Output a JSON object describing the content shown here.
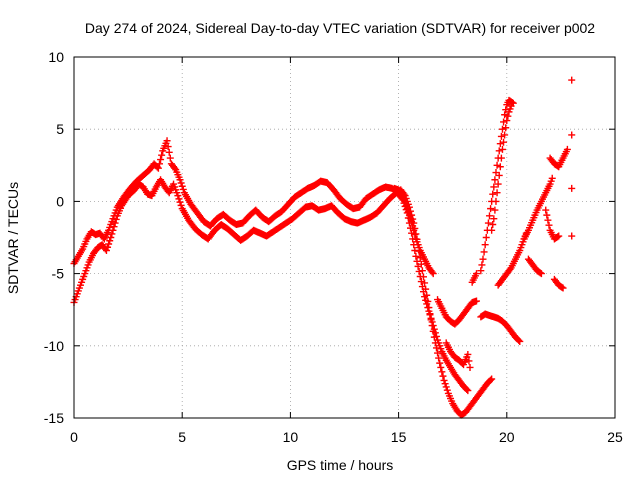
{
  "chart_data": {
    "type": "scatter",
    "title": "Day 274 of 2024, Sidereal Day-to-day VTEC variation (SDTVAR) for receiver p002",
    "xlabel": "GPS time / hours",
    "ylabel": "SDTVAR / TECUs",
    "xlim": [
      0,
      25
    ],
    "ylim": [
      -15,
      10
    ],
    "xticks": [
      0,
      5,
      10,
      15,
      20,
      25
    ],
    "yticks": [
      -15,
      -10,
      -5,
      0,
      5,
      10
    ],
    "grid": true,
    "marker": "plus",
    "color": "#ff0000",
    "series": [
      {
        "segments": [
          [
            [
              0.0,
              -7.0
            ],
            [
              0.25,
              -6.0
            ],
            [
              0.5,
              -5.0
            ],
            [
              0.7,
              -4.2
            ],
            [
              0.9,
              -3.6
            ],
            [
              1.1,
              -3.2
            ],
            [
              1.3,
              -3.0
            ],
            [
              1.5,
              -3.4
            ],
            [
              1.7,
              -2.5
            ],
            [
              1.9,
              -1.5
            ],
            [
              2.0,
              -1.0
            ],
            [
              2.2,
              -0.3
            ],
            [
              2.5,
              0.4
            ],
            [
              2.8,
              0.8
            ],
            [
              3.0,
              1.2
            ],
            [
              3.2,
              1.0
            ],
            [
              3.4,
              0.5
            ],
            [
              3.6,
              0.4
            ],
            [
              3.8,
              1.0
            ],
            [
              4.0,
              1.5
            ],
            [
              4.2,
              1.0
            ],
            [
              4.4,
              0.6
            ],
            [
              4.6,
              1.2
            ],
            [
              4.8,
              0.4
            ],
            [
              5.0,
              -0.5
            ],
            [
              5.3,
              -1.3
            ],
            [
              5.6,
              -1.9
            ],
            [
              5.9,
              -2.3
            ],
            [
              6.2,
              -2.6
            ],
            [
              6.5,
              -2.0
            ],
            [
              6.8,
              -1.6
            ],
            [
              7.1,
              -1.9
            ],
            [
              7.4,
              -2.3
            ],
            [
              7.7,
              -2.7
            ],
            [
              8.0,
              -2.4
            ],
            [
              8.3,
              -2.0
            ],
            [
              8.6,
              -2.2
            ],
            [
              8.9,
              -2.4
            ],
            [
              9.2,
              -2.1
            ],
            [
              9.5,
              -1.8
            ],
            [
              9.8,
              -1.5
            ],
            [
              10.1,
              -1.2
            ],
            [
              10.4,
              -0.8
            ],
            [
              10.7,
              -0.4
            ],
            [
              11.0,
              -0.3
            ],
            [
              11.3,
              -0.6
            ],
            [
              11.6,
              -0.5
            ],
            [
              11.9,
              -0.3
            ],
            [
              12.2,
              -0.8
            ],
            [
              12.5,
              -1.2
            ],
            [
              12.8,
              -1.4
            ],
            [
              13.1,
              -1.5
            ],
            [
              13.4,
              -1.3
            ],
            [
              13.7,
              -1.1
            ],
            [
              14.0,
              -0.8
            ],
            [
              14.3,
              -0.3
            ],
            [
              14.6,
              0.2
            ],
            [
              14.9,
              0.6
            ],
            [
              15.1,
              0.8
            ],
            [
              15.3,
              0.4
            ],
            [
              15.5,
              -0.4
            ],
            [
              15.7,
              -1.5
            ],
            [
              15.9,
              -3.0
            ],
            [
              16.1,
              -4.8
            ],
            [
              16.3,
              -6.5
            ],
            [
              16.5,
              -8.2
            ],
            [
              16.7,
              -9.8
            ],
            [
              16.9,
              -11.2
            ],
            [
              17.1,
              -12.4
            ],
            [
              17.3,
              -13.3
            ],
            [
              17.5,
              -14.0
            ],
            [
              17.7,
              -14.5
            ],
            [
              17.9,
              -14.8
            ],
            [
              18.1,
              -14.6
            ],
            [
              18.3,
              -14.2
            ],
            [
              18.5,
              -13.8
            ],
            [
              18.7,
              -13.4
            ],
            [
              18.9,
              -13.0
            ],
            [
              19.1,
              -12.6
            ],
            [
              19.3,
              -12.3
            ]
          ],
          [
            [
              0.0,
              -4.3
            ],
            [
              0.2,
              -3.8
            ],
            [
              0.4,
              -3.3
            ],
            [
              0.6,
              -2.6
            ],
            [
              0.8,
              -2.1
            ],
            [
              1.0,
              -2.3
            ],
            [
              1.2,
              -2.2
            ],
            [
              1.4,
              -2.6
            ],
            [
              1.6,
              -2.0
            ],
            [
              1.8,
              -1.2
            ],
            [
              2.0,
              -0.4
            ],
            [
              2.3,
              0.3
            ],
            [
              2.6,
              0.9
            ],
            [
              2.9,
              1.4
            ],
            [
              3.2,
              1.8
            ],
            [
              3.5,
              2.2
            ],
            [
              3.7,
              2.6
            ],
            [
              3.9,
              2.3
            ],
            [
              4.1,
              3.5
            ],
            [
              4.3,
              4.2
            ],
            [
              4.5,
              2.6
            ],
            [
              4.7,
              2.2
            ],
            [
              4.9,
              1.5
            ],
            [
              5.1,
              0.6
            ],
            [
              5.4,
              -0.2
            ],
            [
              5.7,
              -0.8
            ],
            [
              6.0,
              -1.4
            ],
            [
              6.3,
              -1.7
            ],
            [
              6.6,
              -1.2
            ],
            [
              6.9,
              -0.9
            ],
            [
              7.2,
              -1.3
            ],
            [
              7.5,
              -1.6
            ],
            [
              7.8,
              -1.5
            ],
            [
              8.1,
              -1.0
            ],
            [
              8.4,
              -0.6
            ],
            [
              8.7,
              -1.1
            ],
            [
              9.0,
              -1.4
            ],
            [
              9.3,
              -1.0
            ],
            [
              9.6,
              -0.7
            ],
            [
              9.9,
              -0.2
            ],
            [
              10.2,
              0.3
            ],
            [
              10.5,
              0.6
            ],
            [
              10.8,
              0.9
            ],
            [
              11.1,
              1.1
            ],
            [
              11.4,
              1.4
            ],
            [
              11.7,
              1.3
            ],
            [
              12.0,
              0.8
            ],
            [
              12.3,
              0.2
            ],
            [
              12.6,
              -0.2
            ],
            [
              12.9,
              -0.5
            ],
            [
              13.2,
              -0.4
            ],
            [
              13.5,
              0.2
            ],
            [
              13.8,
              0.5
            ],
            [
              14.1,
              0.8
            ],
            [
              14.4,
              1.0
            ],
            [
              14.7,
              0.9
            ],
            [
              15.0,
              0.5
            ],
            [
              15.2,
              0.1
            ],
            [
              15.4,
              -0.8
            ],
            [
              15.6,
              -2.2
            ],
            [
              15.8,
              -3.8
            ],
            [
              16.0,
              -5.2
            ],
            [
              16.2,
              -6.6
            ],
            [
              16.4,
              -7.6
            ],
            [
              16.6,
              -8.6
            ],
            [
              16.8,
              -9.6
            ],
            [
              17.0,
              -10.4
            ],
            [
              17.2,
              -11.0
            ],
            [
              17.4,
              -11.5
            ],
            [
              17.6,
              -12.0
            ],
            [
              17.8,
              -12.4
            ],
            [
              18.0,
              -12.8
            ],
            [
              18.2,
              -13.1
            ]
          ],
          [
            [
              14.8,
              0.9
            ],
            [
              15.0,
              0.8
            ],
            [
              15.2,
              0.3
            ],
            [
              15.4,
              -0.5
            ],
            [
              15.6,
              -1.4
            ],
            [
              15.8,
              -2.6
            ],
            [
              16.0,
              -3.4
            ],
            [
              16.2,
              -4.0
            ],
            [
              16.4,
              -4.6
            ],
            [
              16.6,
              -5.0
            ]
          ],
          [
            [
              16.8,
              -6.8
            ],
            [
              17.0,
              -7.4
            ],
            [
              17.2,
              -8.0
            ],
            [
              17.4,
              -8.3
            ],
            [
              17.6,
              -8.5
            ],
            [
              17.8,
              -8.2
            ],
            [
              18.0,
              -7.8
            ],
            [
              18.2,
              -7.4
            ],
            [
              18.4,
              -7.0
            ],
            [
              18.6,
              -6.9
            ]
          ],
          [
            [
              17.2,
              -9.8
            ],
            [
              17.4,
              -10.4
            ],
            [
              17.6,
              -10.8
            ],
            [
              17.8,
              -11.0
            ],
            [
              18.0,
              -11.3
            ],
            [
              18.2,
              -10.6
            ],
            [
              18.3,
              -11.5
            ]
          ],
          [
            [
              18.4,
              -5.6
            ],
            [
              18.6,
              -5.0
            ]
          ],
          [
            [
              18.8,
              -4.8
            ],
            [
              18.9,
              -4.0
            ],
            [
              19.0,
              -3.0
            ],
            [
              19.1,
              -2.0
            ],
            [
              19.2,
              -1.0
            ],
            [
              19.3,
              0.0
            ],
            [
              19.4,
              1.0
            ],
            [
              19.5,
              2.0
            ],
            [
              19.6,
              3.0
            ],
            [
              19.7,
              4.0
            ],
            [
              19.8,
              5.0
            ],
            [
              19.9,
              6.0
            ],
            [
              20.0,
              6.7
            ],
            [
              20.1,
              7.0
            ],
            [
              20.2,
              6.9
            ],
            [
              20.3,
              6.8
            ]
          ],
          [
            [
              19.3,
              -2.0
            ],
            [
              19.4,
              -1.2
            ],
            [
              19.5,
              0.0
            ],
            [
              19.6,
              1.2
            ],
            [
              19.7,
              2.4
            ],
            [
              19.8,
              3.6
            ],
            [
              19.9,
              4.6
            ],
            [
              20.0,
              5.6
            ],
            [
              20.1,
              6.2
            ],
            [
              20.2,
              6.6
            ]
          ],
          [
            [
              18.8,
              -8.0
            ],
            [
              19.0,
              -7.8
            ],
            [
              19.2,
              -7.9
            ],
            [
              19.4,
              -8.0
            ],
            [
              19.6,
              -8.1
            ],
            [
              19.8,
              -8.3
            ],
            [
              20.0,
              -8.6
            ],
            [
              20.2,
              -9.0
            ],
            [
              20.4,
              -9.4
            ],
            [
              20.6,
              -9.7
            ]
          ],
          [
            [
              19.6,
              -5.8
            ],
            [
              19.8,
              -5.4
            ],
            [
              20.0,
              -5.0
            ],
            [
              20.2,
              -4.6
            ],
            [
              20.4,
              -4.0
            ],
            [
              20.6,
              -3.4
            ],
            [
              20.8,
              -2.6
            ],
            [
              20.9,
              -2.2
            ]
          ],
          [
            [
              20.8,
              -2.6
            ],
            [
              21.0,
              -2.0
            ],
            [
              21.2,
              -1.3
            ],
            [
              21.4,
              -0.6
            ],
            [
              21.6,
              0.0
            ],
            [
              21.8,
              0.6
            ],
            [
              22.0,
              1.2
            ],
            [
              22.1,
              1.6
            ]
          ],
          [
            [
              21.0,
              -4.0
            ],
            [
              21.2,
              -4.4
            ],
            [
              21.4,
              -4.8
            ],
            [
              21.6,
              -5.0
            ]
          ],
          [
            [
              22.0,
              3.0
            ],
            [
              22.2,
              2.6
            ],
            [
              22.4,
              2.4
            ],
            [
              22.6,
              3.0
            ],
            [
              22.8,
              3.6
            ]
          ],
          [
            [
              21.8,
              -0.6
            ],
            [
              22.0,
              -2.0
            ],
            [
              22.2,
              -2.6
            ],
            [
              22.4,
              -2.4
            ]
          ],
          [
            [
              22.2,
              -5.4
            ],
            [
              22.4,
              -5.8
            ],
            [
              22.6,
              -6.0
            ]
          ],
          [
            [
              23.0,
              8.4
            ],
            [
              23.0,
              4.6
            ],
            [
              23.0,
              0.9
            ],
            [
              23.0,
              -2.4
            ]
          ]
        ]
      }
    ]
  }
}
